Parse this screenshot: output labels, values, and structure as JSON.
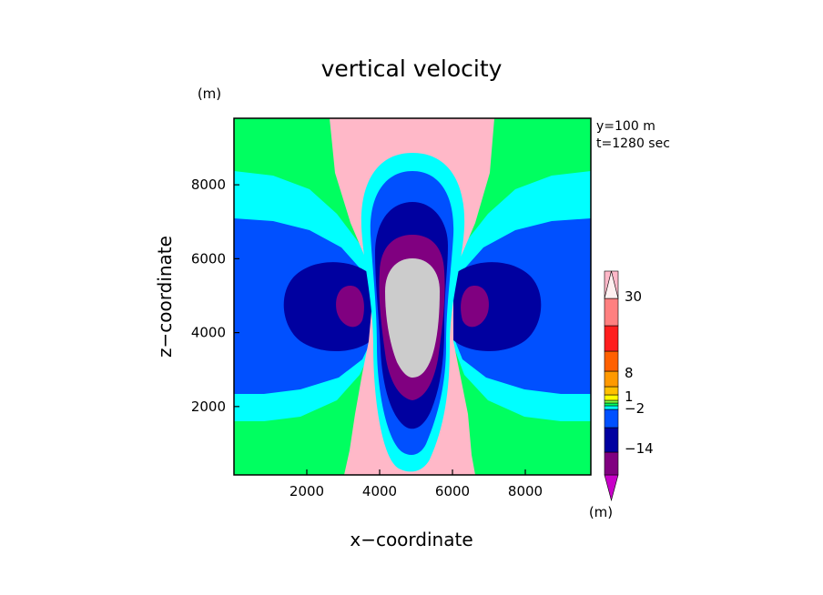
{
  "chart_data": {
    "type": "heatmap",
    "title": "vertical velocity",
    "xlabel": "x−coordinate",
    "ylabel": "z−coordinate",
    "x_unit": "(m)",
    "y_unit": "(m)",
    "xlim": [
      0,
      9800
    ],
    "ylim": [
      150,
      9800
    ],
    "x_ticks": [
      2000,
      4000,
      6000,
      8000
    ],
    "y_ticks": [
      2000,
      4000,
      6000,
      8000
    ],
    "annotations": [
      "y=100 m",
      "t=1280 sec"
    ],
    "colorbar": {
      "unit": "(m)",
      "tick_labels": [
        "30",
        "8",
        "1",
        "−2",
        "−14"
      ],
      "levels_low_to_high": [
        {
          "color": "#c800c8"
        },
        {
          "color": "#800080"
        },
        {
          "color": "#0000a0"
        },
        {
          "color": "#0050ff"
        },
        {
          "color": "#00ffff"
        },
        {
          "color": "#00ff60"
        },
        {
          "color": "#80ff40"
        },
        {
          "color": "#ffff00"
        },
        {
          "color": "#ffc000"
        },
        {
          "color": "#ff9900"
        },
        {
          "color": "#ff6000"
        },
        {
          "color": "#ff1e1e"
        },
        {
          "color": "#ff8080"
        },
        {
          "color": "#ffb8c8"
        },
        {
          "color": "#fff0f0"
        }
      ]
    },
    "field_regions": [
      {
        "name": "outer-background",
        "color": "#00ff60"
      },
      {
        "name": "updraft-plume",
        "color": "#ffff00"
      },
      {
        "name": "updraft-level-1",
        "color": "#ffc000"
      },
      {
        "name": "updraft-level-2",
        "color": "#ff9900"
      },
      {
        "name": "updraft-level-3",
        "color": "#ff6000"
      },
      {
        "name": "updraft-level-4",
        "color": "#ff1e1e"
      },
      {
        "name": "updraft-level-5",
        "color": "#ff8080"
      },
      {
        "name": "updraft-core",
        "color": "#ffb8c8"
      },
      {
        "name": "downdraft-band-cyan",
        "color": "#00ffff"
      },
      {
        "name": "downdraft-band-blue",
        "color": "#0050ff"
      },
      {
        "name": "downdraft-navy",
        "color": "#0000a0"
      },
      {
        "name": "downdraft-purple",
        "color": "#800080"
      }
    ]
  }
}
